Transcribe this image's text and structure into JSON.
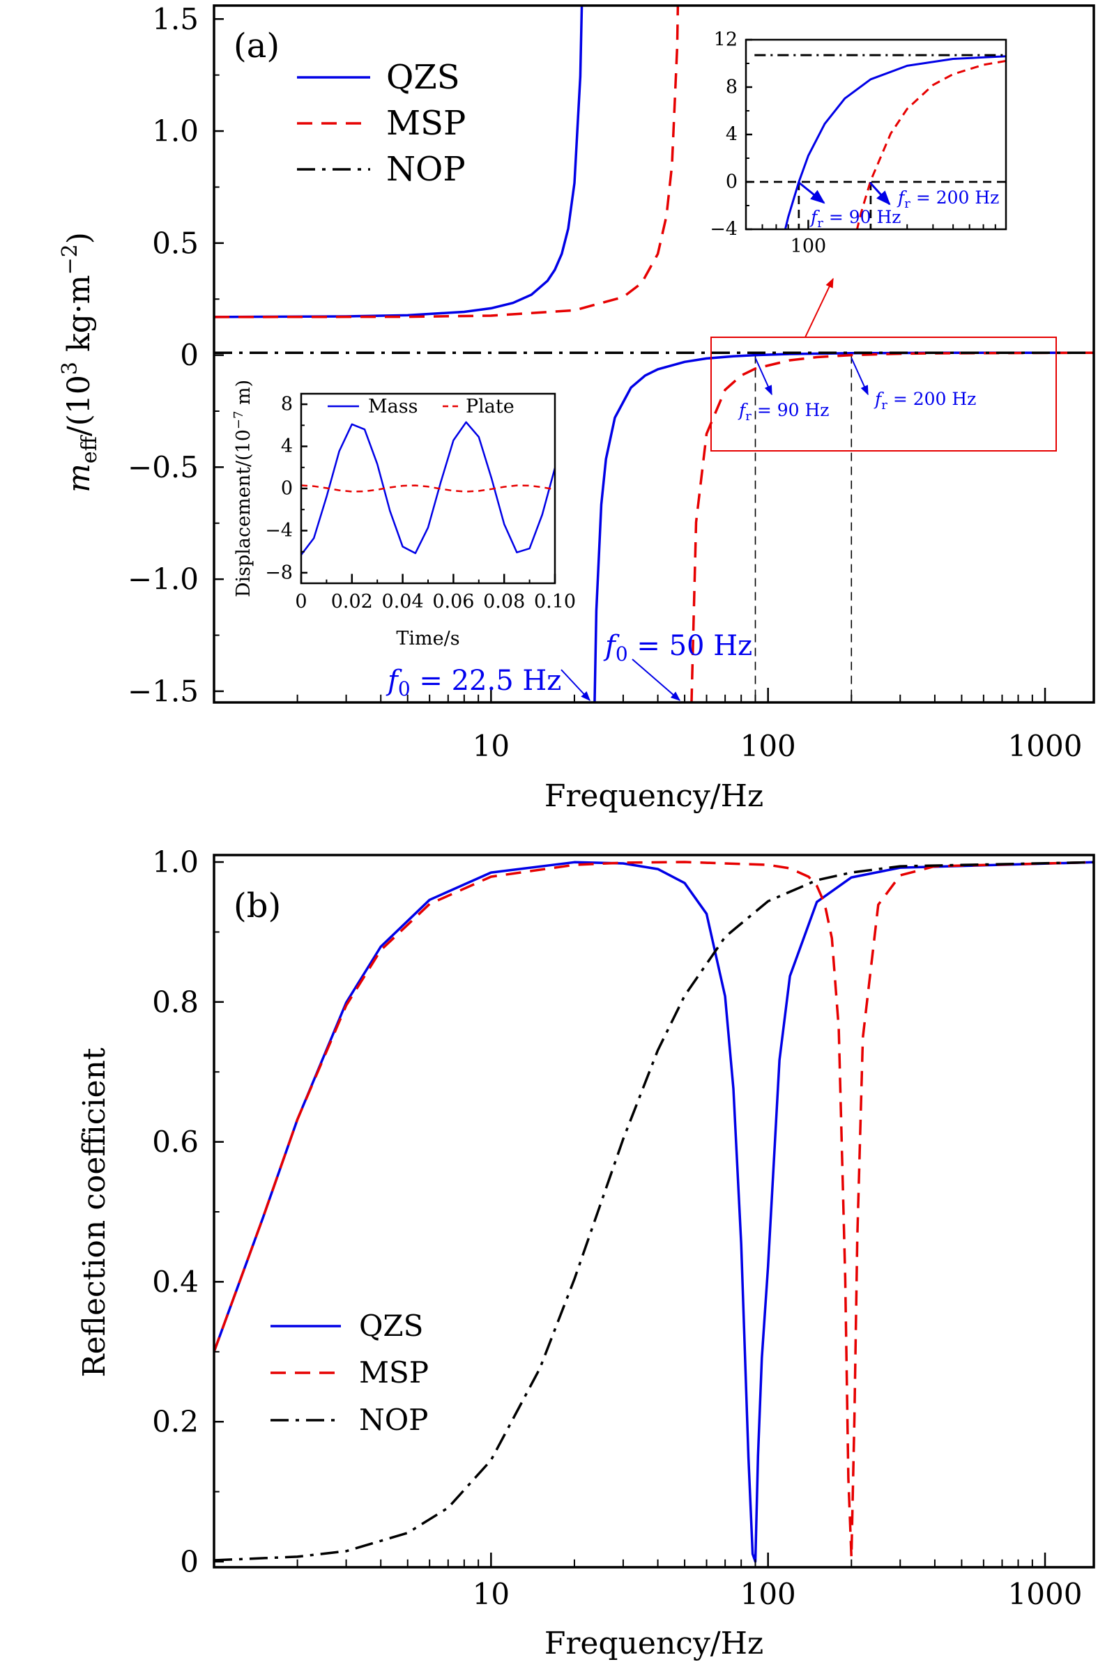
{
  "colors": {
    "qzs": "#0000e6",
    "msp": "#e60000",
    "nop": "#000000",
    "annotation": "#0000e6",
    "zoom_box": "#e60000"
  },
  "panel_a": {
    "tag": "(a)",
    "xlabel": "Frequency/Hz",
    "ylabel": {
      "var": "m",
      "sub": "eff",
      "pre": "/(10",
      "sup": "3",
      "mid": " kg·m",
      "sup2": "−2",
      "post": ")"
    },
    "legend": [
      "QZS",
      "MSP",
      "NOP"
    ],
    "annotations": {
      "f0_qzs": {
        "var": "f",
        "sub": "0",
        "rest": " = 22.5 Hz"
      },
      "f0_msp": {
        "var": "f",
        "sub": "0",
        "rest": " = 50 Hz"
      },
      "fr_qzs": {
        "var": "f",
        "sub": "r",
        "rest": " = 90 Hz"
      },
      "fr_msp": {
        "var": "f",
        "sub": "r",
        "rest": " = 200 Hz"
      }
    }
  },
  "panel_b": {
    "tag": "(b)",
    "xlabel": "Frequency/Hz",
    "ylabel": "Reflection coefficient",
    "legend": [
      "QZS",
      "MSP",
      "NOP"
    ]
  },
  "inset_disp": {
    "xlabel": "Time/s",
    "ylabel": {
      "pre": "Displacement/(10",
      "sup": "−7",
      "post": " m)"
    },
    "legend": [
      "Mass",
      "Plate"
    ]
  },
  "chart_data": [
    {
      "id": "meff",
      "type": "line",
      "xscale": "log",
      "xlim": [
        1,
        1500
      ],
      "ylim": [
        -1.55,
        1.56
      ],
      "xticks": [
        10,
        100,
        1000
      ],
      "xtick_labels": [
        "10",
        "100",
        "1000"
      ],
      "yticks": [
        1.5,
        1.0,
        0.5,
        0,
        -0.5,
        -1.0,
        -1.5
      ],
      "ytick_labels": [
        "1.5",
        "1.0",
        "0.5",
        "0",
        "−0.5",
        "−1.0",
        "−1.5"
      ],
      "vlines": [
        90,
        200
      ],
      "series": [
        {
          "name": "QZS",
          "style": "solid",
          "points": [
            [
              1,
              0.17
            ],
            [
              3,
              0.173
            ],
            [
              5,
              0.178
            ],
            [
              8,
              0.193
            ],
            [
              10,
              0.209
            ],
            [
              12,
              0.233
            ],
            [
              14,
              0.27
            ],
            [
              16,
              0.332
            ],
            [
              17,
              0.381
            ],
            [
              18,
              0.452
            ],
            [
              19,
              0.565
            ],
            [
              20,
              0.768
            ],
            [
              21,
              1.244
            ],
            [
              21.5,
              1.84
            ],
            [
              22,
              3.62
            ],
            [
              22.4,
              40
            ],
            null,
            [
              22.6,
              -40
            ],
            [
              23,
              -3.52
            ],
            [
              23.5,
              -1.738
            ],
            [
              24,
              -1.141
            ],
            [
              25,
              -0.667
            ],
            [
              26,
              -0.464
            ],
            [
              28,
              -0.279
            ],
            [
              32,
              -0.145
            ],
            [
              36,
              -0.091
            ],
            [
              40,
              -0.063
            ],
            [
              50,
              -0.03
            ],
            [
              60,
              -0.015
            ],
            [
              75,
              -0.005
            ],
            [
              90,
              0.0
            ],
            [
              120,
              0.0049
            ],
            [
              200,
              0.0087
            ],
            [
              400,
              0.0102
            ],
            [
              1500,
              0.0107
            ]
          ]
        },
        {
          "name": "MSP",
          "style": "dashed",
          "points": [
            [
              1,
              0.17
            ],
            [
              5,
              0.171
            ],
            [
              10,
              0.176
            ],
            [
              20,
              0.2
            ],
            [
              30,
              0.259
            ],
            [
              35,
              0.322
            ],
            [
              40,
              0.452
            ],
            [
              43,
              0.621
            ],
            [
              45,
              0.848
            ],
            [
              47,
              1.377
            ],
            [
              48,
              2.04
            ],
            [
              49.8,
              40
            ],
            null,
            [
              50.2,
              -40
            ],
            [
              52,
              -1.938
            ],
            [
              55,
              -0.746
            ],
            [
              60,
              -0.351
            ],
            [
              70,
              -0.155
            ],
            [
              80,
              -0.091
            ],
            [
              90,
              -0.06
            ],
            [
              120,
              -0.023
            ],
            [
              150,
              -0.009
            ],
            [
              200,
              0.0
            ],
            [
              300,
              0.0062
            ],
            [
              400,
              0.0082
            ],
            [
              1500,
              0.0105
            ]
          ]
        },
        {
          "name": "NOP",
          "style": "dashdot",
          "points": [
            [
              1,
              0.0107
            ],
            [
              1500,
              0.0107
            ]
          ]
        }
      ]
    },
    {
      "id": "meff_zoom",
      "type": "line",
      "xscale": "log",
      "xlim": [
        50,
        900
      ],
      "ylim": [
        -4,
        12
      ],
      "xticks": [
        100
      ],
      "xtick_labels": [
        "100"
      ],
      "yticks": [
        12,
        8,
        4,
        0,
        -4
      ],
      "ytick_labels": [
        "12",
        "8",
        "4",
        "0",
        "−4"
      ],
      "hline": 0,
      "vlines": [
        90,
        200
      ],
      "series": [
        {
          "name": "QZS",
          "style": "solid",
          "points": [
            [
              75,
              -5.0
            ],
            [
              80,
              -2.96
            ],
            [
              90,
              0.0
            ],
            [
              100,
              2.22
            ],
            [
              120,
              4.9
            ],
            [
              150,
              7.04
            ],
            [
              200,
              8.66
            ],
            [
              300,
              9.8
            ],
            [
              500,
              10.38
            ],
            [
              900,
              10.6
            ]
          ]
        },
        {
          "name": "MSP",
          "style": "dashed",
          "points": [
            [
              150,
              -9.2
            ],
            [
              170,
              -4.36
            ],
            [
              180,
              -2.59
            ],
            [
              200,
              0.1
            ],
            [
              250,
              4.08
            ],
            [
              300,
              6.16
            ],
            [
              400,
              8.18
            ],
            [
              500,
              9.09
            ],
            [
              700,
              9.88
            ],
            [
              900,
              10.21
            ]
          ]
        },
        {
          "name": "NOP",
          "style": "dashdot",
          "points": [
            [
              55,
              10.7
            ],
            [
              900,
              10.7
            ]
          ]
        }
      ]
    },
    {
      "id": "displacement",
      "type": "line",
      "xscale": "linear",
      "xlim": [
        0,
        0.1
      ],
      "ylim": [
        -9,
        9
      ],
      "xticks": [
        0,
        0.02,
        0.04,
        0.06,
        0.08,
        0.1
      ],
      "xtick_labels": [
        "0",
        "0.02",
        "0.04",
        "0.06",
        "0.08",
        "0.10"
      ],
      "yticks": [
        8,
        4,
        0,
        -4,
        -8
      ],
      "ytick_labels": [
        "8",
        "4",
        "0",
        "−4",
        "−8"
      ],
      "series": [
        {
          "name": "Mass",
          "style": "solid",
          "points": [
            [
              0,
              -6.3
            ],
            [
              0.005,
              -4.72
            ],
            [
              0.01,
              -0.79
            ],
            [
              0.015,
              3.54
            ],
            [
              0.02,
              6.1
            ],
            [
              0.025,
              5.61
            ],
            [
              0.03,
              2.32
            ],
            [
              0.035,
              -2.14
            ],
            [
              0.04,
              -5.52
            ],
            [
              0.045,
              -6.15
            ],
            [
              0.05,
              -3.71
            ],
            [
              0.055,
              0.59
            ],
            [
              0.06,
              4.57
            ],
            [
              0.065,
              6.3
            ],
            [
              0.07,
              4.89
            ],
            [
              0.075,
              0.98
            ],
            [
              0.08,
              -3.38
            ],
            [
              0.085,
              -6.07
            ],
            [
              0.09,
              -5.7
            ],
            [
              0.095,
              -2.48
            ],
            [
              0.1,
              1.95
            ]
          ]
        },
        {
          "name": "Plate",
          "style": "dashed",
          "points": [
            [
              0,
              0.3
            ],
            [
              0.005,
              0.22
            ],
            [
              0.01,
              0.04
            ],
            [
              0.015,
              -0.17
            ],
            [
              0.02,
              -0.29
            ],
            [
              0.025,
              -0.27
            ],
            [
              0.03,
              -0.11
            ],
            [
              0.035,
              0.1
            ],
            [
              0.04,
              0.26
            ],
            [
              0.045,
              0.29
            ],
            [
              0.05,
              0.18
            ],
            [
              0.055,
              -0.03
            ],
            [
              0.06,
              -0.22
            ],
            [
              0.065,
              -0.3
            ],
            [
              0.07,
              -0.23
            ],
            [
              0.075,
              -0.05
            ],
            [
              0.08,
              0.16
            ],
            [
              0.085,
              0.29
            ],
            [
              0.09,
              0.27
            ],
            [
              0.095,
              0.12
            ],
            [
              0.1,
              -0.09
            ]
          ]
        }
      ]
    },
    {
      "id": "reflection",
      "type": "line",
      "xscale": "log",
      "xlim": [
        1,
        1500
      ],
      "ylim": [
        -0.008,
        1.01
      ],
      "xticks": [
        10,
        100,
        1000
      ],
      "xtick_labels": [
        "10",
        "100",
        "1000"
      ],
      "yticks": [
        1.0,
        0.8,
        0.6,
        0.4,
        0.2,
        0
      ],
      "ytick_labels": [
        "1.0",
        "0.8",
        "0.6",
        "0.4",
        "0.2",
        "0"
      ],
      "series": [
        {
          "name": "QZS",
          "style": "solid",
          "points": [
            [
              1,
              0.3
            ],
            [
              1.5,
              0.491
            ],
            [
              2,
              0.632
            ],
            [
              3,
              0.799
            ],
            [
              4,
              0.879
            ],
            [
              6,
              0.946
            ],
            [
              10,
              0.985
            ],
            [
              20,
              0.9997
            ],
            [
              30,
              0.998
            ],
            [
              40,
              0.99
            ],
            [
              50,
              0.97
            ],
            [
              60,
              0.926
            ],
            [
              70,
              0.808
            ],
            [
              75,
              0.676
            ],
            [
              80,
              0.454
            ],
            [
              85,
              0.149
            ],
            [
              88,
              0.011
            ],
            [
              90,
              0.0
            ],
            [
              92,
              0.151
            ],
            [
              95,
              0.291
            ],
            [
              100,
              0.422
            ],
            [
              110,
              0.717
            ],
            [
              120,
              0.837
            ],
            [
              150,
              0.943
            ],
            [
              200,
              0.978
            ],
            [
              300,
              0.992
            ],
            [
              1500,
              0.9997
            ]
          ]
        },
        {
          "name": "MSP",
          "style": "dashed",
          "points": [
            [
              1,
              0.3
            ],
            [
              1.5,
              0.491
            ],
            [
              2,
              0.632
            ],
            [
              3,
              0.795
            ],
            [
              4,
              0.874
            ],
            [
              6,
              0.94
            ],
            [
              10,
              0.979
            ],
            [
              20,
              0.996
            ],
            [
              30,
              0.999
            ],
            [
              50,
              1.0
            ],
            [
              100,
              0.996
            ],
            [
              120,
              0.991
            ],
            [
              140,
              0.979
            ],
            [
              150,
              0.966
            ],
            [
              160,
              0.941
            ],
            [
              170,
              0.891
            ],
            [
              180,
              0.763
            ],
            [
              190,
              0.406
            ],
            [
              195,
              0.119
            ],
            [
              200,
              0.006
            ],
            [
              205,
              0.205
            ],
            [
              210,
              0.462
            ],
            [
              220,
              0.749
            ],
            [
              250,
              0.939
            ],
            [
              300,
              0.981
            ],
            [
              400,
              0.994
            ],
            [
              1500,
              0.9997
            ]
          ]
        },
        {
          "name": "NOP",
          "style": "dashdot",
          "points": [
            [
              1,
              0.002
            ],
            [
              2,
              0.007
            ],
            [
              3,
              0.015
            ],
            [
              5,
              0.041
            ],
            [
              7,
              0.077
            ],
            [
              10,
              0.145
            ],
            [
              15,
              0.276
            ],
            [
              20,
              0.404
            ],
            [
              30,
              0.604
            ],
            [
              40,
              0.731
            ],
            [
              50,
              0.809
            ],
            [
              70,
              0.893
            ],
            [
              100,
              0.944
            ],
            [
              150,
              0.974
            ],
            [
              200,
              0.985
            ],
            [
              300,
              0.994
            ],
            [
              1500,
              0.9997
            ]
          ]
        }
      ]
    }
  ]
}
